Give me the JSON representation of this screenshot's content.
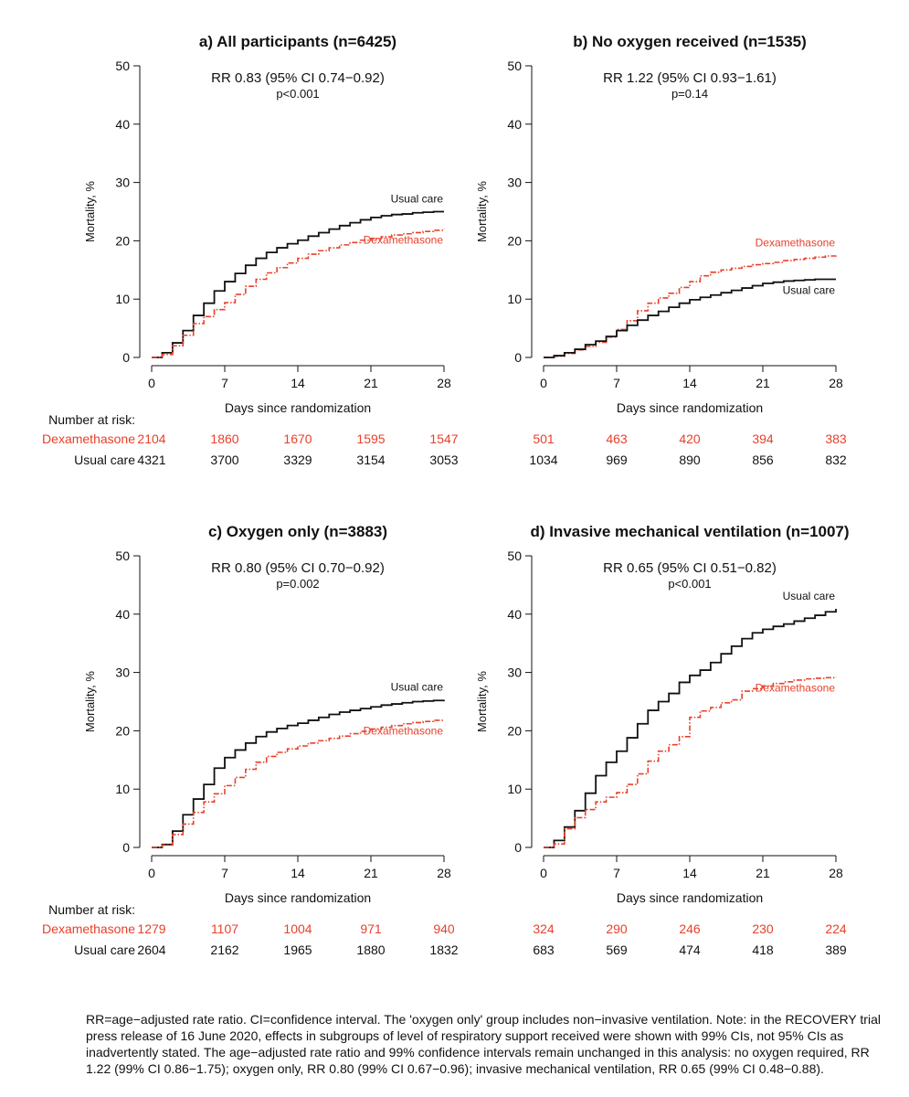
{
  "colors": {
    "dexamethasone": "#e8402a",
    "usual_care": "#111111"
  },
  "risk_label": "Number at risk:",
  "caption": "RR=age−adjusted rate ratio. CI=confidence interval. The 'oxygen only' group includes non−invasive ventilation. Note: in the RECOVERY trial press release of 16 June 2020, effects in subgroups of level of respiratory support received were shown with 99% CIs, not 95% CIs as inadvertently stated. The age−adjusted rate ratio and 99% confidence intervals remain unchanged in this analysis: no oxygen required, RR 1.22 (99% CI 0.86−1.75); oxygen only, RR 0.80 (99% CI 0.67−0.96); invasive mechanical ventilation, RR 0.65 (99% CI 0.48−0.88).",
  "chart_data": [
    {
      "type": "line",
      "title": "a) All participants (n=6425)",
      "rr_text": "RR 0.83 (95% CI 0.74−0.92)",
      "p_text": "p<0.001",
      "xlabel": "Days since randomization",
      "ylabel": "Mortality, %",
      "xlim": [
        0,
        28
      ],
      "ylim": [
        0,
        50
      ],
      "x_ticks": [
        0,
        7,
        14,
        21,
        28
      ],
      "y_ticks": [
        0,
        10,
        20,
        30,
        40,
        50
      ],
      "series": [
        {
          "name": "Usual care",
          "label_pos": "above",
          "x": [
            0,
            1,
            2,
            3,
            4,
            5,
            6,
            7,
            8,
            9,
            10,
            11,
            12,
            13,
            14,
            15,
            16,
            17,
            18,
            19,
            20,
            21,
            22,
            23,
            24,
            25,
            26,
            27,
            28
          ],
          "y": [
            0,
            0.8,
            2.5,
            4.6,
            7.2,
            9.3,
            11.4,
            13.0,
            14.4,
            15.8,
            17.0,
            18.0,
            18.8,
            19.5,
            20.1,
            20.8,
            21.4,
            22.0,
            22.6,
            23.1,
            23.6,
            24.0,
            24.3,
            24.5,
            24.6,
            24.8,
            24.9,
            25.0,
            25.0
          ]
        },
        {
          "name": "Dexamethasone",
          "label_pos": "below",
          "x": [
            0,
            1,
            2,
            3,
            4,
            5,
            6,
            7,
            8,
            9,
            10,
            11,
            12,
            13,
            14,
            15,
            16,
            17,
            18,
            19,
            20,
            21,
            22,
            23,
            24,
            25,
            26,
            27,
            28
          ],
          "y": [
            0,
            0.5,
            2.0,
            3.8,
            5.8,
            7.0,
            8.2,
            9.4,
            10.8,
            12.2,
            13.4,
            14.5,
            15.4,
            16.2,
            17.0,
            17.7,
            18.3,
            18.8,
            19.3,
            19.7,
            20.1,
            20.4,
            20.7,
            21.0,
            21.2,
            21.4,
            21.6,
            21.8,
            22.0
          ]
        }
      ],
      "risk_table": [
        {
          "name": "Dexamethasone",
          "values": [
            "2104",
            "1860",
            "1670",
            "1595",
            "1547"
          ]
        },
        {
          "name": "Usual care",
          "values": [
            "4321",
            "3700",
            "3329",
            "3154",
            "3053"
          ]
        }
      ]
    },
    {
      "type": "line",
      "title": "b) No oxygen received (n=1535)",
      "rr_text": "RR 1.22 (95% CI 0.93−1.61)",
      "p_text": "p=0.14",
      "xlabel": "Days since randomization",
      "ylabel": "Mortality, %",
      "xlim": [
        0,
        28
      ],
      "ylim": [
        0,
        50
      ],
      "x_ticks": [
        0,
        7,
        14,
        21,
        28
      ],
      "y_ticks": [
        0,
        10,
        20,
        30,
        40,
        50
      ],
      "series": [
        {
          "name": "Dexamethasone",
          "label_pos": "above",
          "x": [
            0,
            1,
            2,
            3,
            4,
            5,
            6,
            7,
            8,
            9,
            10,
            11,
            12,
            13,
            14,
            15,
            16,
            17,
            18,
            19,
            20,
            21,
            22,
            23,
            24,
            25,
            26,
            27,
            28
          ],
          "y": [
            0,
            0.2,
            0.7,
            1.3,
            1.9,
            2.6,
            3.5,
            4.8,
            6.3,
            8.0,
            9.3,
            10.2,
            11.0,
            12.0,
            13.0,
            14.0,
            14.6,
            15.0,
            15.3,
            15.6,
            15.9,
            16.1,
            16.3,
            16.6,
            16.8,
            17.0,
            17.2,
            17.4,
            17.5
          ]
        },
        {
          "name": "Usual care",
          "label_pos": "below",
          "x": [
            0,
            1,
            2,
            3,
            4,
            5,
            6,
            7,
            8,
            9,
            10,
            11,
            12,
            13,
            14,
            15,
            16,
            17,
            18,
            19,
            20,
            21,
            22,
            23,
            24,
            25,
            26,
            27,
            28
          ],
          "y": [
            0,
            0.3,
            0.8,
            1.4,
            2.2,
            2.8,
            3.6,
            4.6,
            5.5,
            6.4,
            7.2,
            7.9,
            8.6,
            9.3,
            9.9,
            10.3,
            10.7,
            11.1,
            11.5,
            11.9,
            12.3,
            12.7,
            12.9,
            13.1,
            13.2,
            13.3,
            13.4,
            13.4,
            13.4
          ]
        }
      ],
      "risk_table": [
        {
          "name": "Dexamethasone",
          "values": [
            "501",
            "463",
            "420",
            "394",
            "383"
          ]
        },
        {
          "name": "Usual care",
          "values": [
            "1034",
            "969",
            "890",
            "856",
            "832"
          ]
        }
      ]
    },
    {
      "type": "line",
      "title": "c) Oxygen only (n=3883)",
      "rr_text": "RR 0.80 (95% CI 0.70−0.92)",
      "p_text": "p=0.002",
      "xlabel": "Days since randomization",
      "ylabel": "Mortality, %",
      "xlim": [
        0,
        28
      ],
      "ylim": [
        0,
        50
      ],
      "x_ticks": [
        0,
        7,
        14,
        21,
        28
      ],
      "y_ticks": [
        0,
        10,
        20,
        30,
        40,
        50
      ],
      "series": [
        {
          "name": "Usual care",
          "label_pos": "above",
          "x": [
            0,
            1,
            2,
            3,
            4,
            5,
            6,
            7,
            8,
            9,
            10,
            11,
            12,
            13,
            14,
            15,
            16,
            17,
            18,
            19,
            20,
            21,
            22,
            23,
            24,
            25,
            26,
            27,
            28
          ],
          "y": [
            0,
            0.5,
            2.8,
            5.6,
            8.3,
            10.8,
            13.6,
            15.4,
            16.7,
            17.9,
            19.0,
            19.8,
            20.4,
            20.9,
            21.3,
            21.8,
            22.3,
            22.8,
            23.2,
            23.5,
            23.8,
            24.1,
            24.4,
            24.6,
            24.8,
            25.0,
            25.1,
            25.2,
            25.3
          ]
        },
        {
          "name": "Dexamethasone",
          "label_pos": "below",
          "x": [
            0,
            1,
            2,
            3,
            4,
            5,
            6,
            7,
            8,
            9,
            10,
            11,
            12,
            13,
            14,
            15,
            16,
            17,
            18,
            19,
            20,
            21,
            22,
            23,
            24,
            25,
            26,
            27,
            28
          ],
          "y": [
            0,
            0.4,
            2.2,
            4.0,
            6.0,
            7.8,
            9.2,
            10.6,
            12.0,
            13.4,
            14.6,
            15.6,
            16.3,
            16.9,
            17.4,
            17.9,
            18.3,
            18.7,
            19.1,
            19.5,
            19.9,
            20.3,
            20.6,
            20.9,
            21.2,
            21.4,
            21.6,
            21.8,
            21.9
          ]
        }
      ],
      "risk_table": [
        {
          "name": "Dexamethasone",
          "values": [
            "1279",
            "1107",
            "1004",
            "971",
            "940"
          ]
        },
        {
          "name": "Usual care",
          "values": [
            "2604",
            "2162",
            "1965",
            "1880",
            "1832"
          ]
        }
      ]
    },
    {
      "type": "line",
      "title": "d) Invasive mechanical ventilation (n=1007)",
      "rr_text": "RR 0.65 (95% CI 0.51−0.82)",
      "p_text": "p<0.001",
      "xlabel": "Days since randomization",
      "ylabel": "Mortality, %",
      "xlim": [
        0,
        28
      ],
      "ylim": [
        0,
        50
      ],
      "x_ticks": [
        0,
        7,
        14,
        21,
        28
      ],
      "y_ticks": [
        0,
        10,
        20,
        30,
        40,
        50
      ],
      "series": [
        {
          "name": "Usual care",
          "label_pos": "above",
          "x": [
            0,
            1,
            2,
            3,
            4,
            5,
            6,
            7,
            8,
            9,
            10,
            11,
            12,
            13,
            14,
            15,
            16,
            17,
            18,
            19,
            20,
            21,
            22,
            23,
            24,
            25,
            26,
            27,
            28
          ],
          "y": [
            0,
            1.2,
            3.5,
            6.3,
            9.3,
            12.3,
            14.6,
            16.5,
            18.8,
            21.2,
            23.5,
            25.0,
            26.4,
            28.3,
            29.5,
            30.4,
            31.7,
            33.2,
            34.5,
            35.8,
            36.8,
            37.4,
            37.9,
            38.3,
            38.8,
            39.3,
            39.8,
            40.4,
            40.9
          ]
        },
        {
          "name": "Dexamethasone",
          "label_pos": "below",
          "x": [
            0,
            1,
            2,
            3,
            4,
            5,
            6,
            7,
            8,
            9,
            10,
            11,
            12,
            13,
            14,
            15,
            16,
            17,
            18,
            19,
            20,
            21,
            22,
            23,
            24,
            25,
            26,
            27,
            28
          ],
          "y": [
            0,
            0.6,
            3.2,
            5.1,
            6.5,
            7.8,
            8.6,
            9.4,
            10.8,
            12.6,
            14.8,
            16.5,
            17.6,
            19.0,
            22.3,
            23.4,
            24.0,
            24.8,
            25.3,
            26.8,
            27.2,
            27.7,
            28.1,
            28.4,
            28.7,
            28.9,
            29.0,
            29.1,
            29.2
          ]
        }
      ],
      "risk_table": [
        {
          "name": "Dexamethasone",
          "values": [
            "324",
            "290",
            "246",
            "230",
            "224"
          ]
        },
        {
          "name": "Usual care",
          "values": [
            "683",
            "569",
            "474",
            "418",
            "389"
          ]
        }
      ]
    }
  ]
}
